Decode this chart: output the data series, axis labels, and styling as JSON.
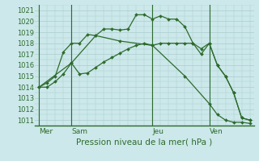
{
  "background_color": "#cce8ea",
  "grid_color": "#aacccc",
  "line_color": "#2d6b2d",
  "marker_color": "#2d6b2d",
  "title": "Pression niveau de la mer( hPa )",
  "ylim": [
    1010.5,
    1021.5
  ],
  "yticks": [
    1011,
    1012,
    1013,
    1014,
    1015,
    1016,
    1017,
    1018,
    1019,
    1020,
    1021
  ],
  "day_labels": [
    "Mer",
    "Sam",
    "Jeu",
    "Ven"
  ],
  "day_positions": [
    0,
    4,
    14,
    21
  ],
  "xlim": [
    -0.5,
    26.5
  ],
  "line1_x": [
    0,
    1,
    2,
    3,
    4,
    5,
    6,
    7,
    8,
    9,
    10,
    11,
    12,
    13,
    14,
    15,
    16,
    17,
    18,
    19,
    20,
    21,
    22,
    23,
    24,
    25,
    26
  ],
  "line1_y": [
    1014.0,
    1014.4,
    1015.0,
    1017.2,
    1018.0,
    1018.0,
    1018.8,
    1018.7,
    1019.3,
    1019.3,
    1019.2,
    1019.3,
    1020.6,
    1020.6,
    1020.2,
    1020.5,
    1020.2,
    1020.2,
    1019.5,
    1018.0,
    1017.0,
    1018.0,
    1016.0,
    1015.0,
    1013.5,
    1011.2,
    1011.0
  ],
  "line2_x": [
    0,
    1,
    2,
    3,
    4,
    5,
    6,
    7,
    8,
    9,
    10,
    11,
    12,
    13,
    14,
    15,
    16,
    17,
    18,
    19,
    20,
    21,
    22,
    23,
    24,
    25,
    26
  ],
  "line2_y": [
    1014.0,
    1014.0,
    1014.5,
    1015.2,
    1016.2,
    1015.2,
    1015.3,
    1015.8,
    1016.3,
    1016.7,
    1017.1,
    1017.5,
    1017.8,
    1018.0,
    1017.8,
    1018.0,
    1018.0,
    1018.0,
    1018.0,
    1018.0,
    1017.5,
    1018.0,
    1016.0,
    1015.0,
    1013.5,
    1011.2,
    1011.0
  ],
  "line3_x": [
    0,
    4,
    7,
    10,
    14,
    18,
    21,
    22,
    23,
    24,
    25,
    26
  ],
  "line3_y": [
    1014.0,
    1016.2,
    1018.7,
    1018.2,
    1017.8,
    1015.0,
    1012.5,
    1011.5,
    1011.0,
    1010.8,
    1010.8,
    1010.7
  ]
}
